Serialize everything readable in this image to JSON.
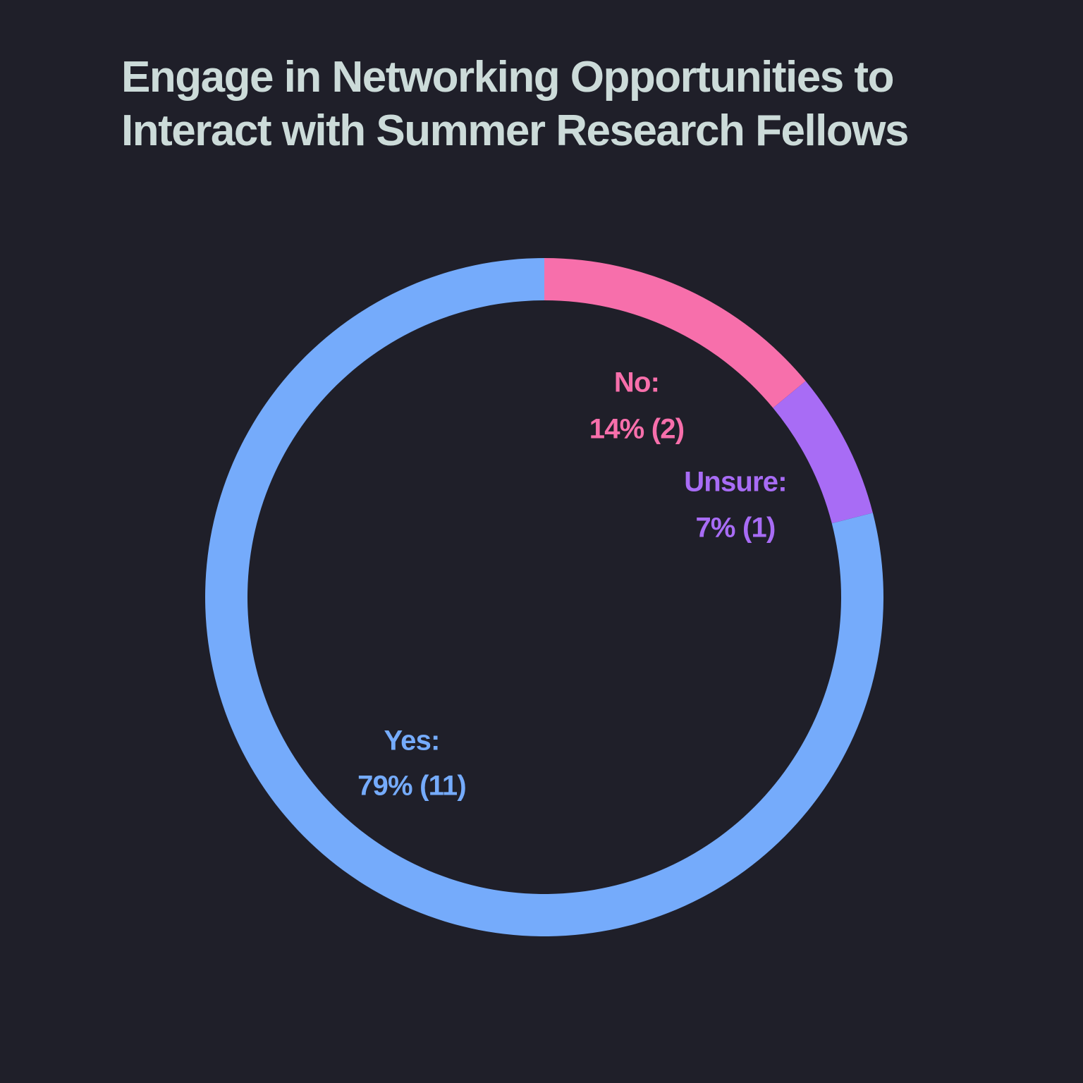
{
  "chart_data": {
    "type": "pie",
    "style": "donut",
    "title_lines": [
      "Engage in Networking Opportunities to",
      "Interact with Summer Research Fellows"
    ],
    "slices": [
      {
        "name": "No",
        "label": "No:",
        "value_label": "14% (2)",
        "percent": 14,
        "count": 2,
        "color": "#f76fab"
      },
      {
        "name": "Unsure",
        "label": "Unsure:",
        "value_label": "7% (1)",
        "percent": 7,
        "count": 1,
        "color": "#a86cf5"
      },
      {
        "name": "Yes",
        "label": "Yes:",
        "value_label": "79% (11)",
        "percent": 79,
        "count": 11,
        "color": "#75abfb"
      }
    ],
    "start": "top",
    "direction": "clockwise"
  },
  "colors": {
    "background": "#1f1f29",
    "title": "#ccdbd9"
  }
}
